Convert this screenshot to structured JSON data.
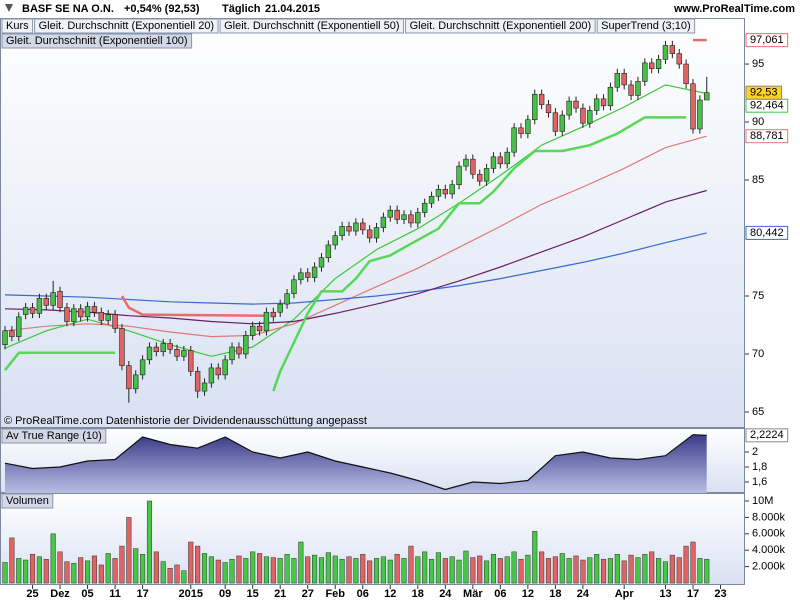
{
  "header": {
    "symbol": "BASF SE NA O.N.",
    "change": "+0,54% (92,53)",
    "period": "Täglich",
    "date": "21.04.2015",
    "source": "www.ProRealTime.com"
  },
  "chart_data": [
    {
      "type": "candlestick",
      "note": "© ProRealTime.com  Datenhistorie der Dividendenausschüttung angepasst",
      "xlim": [
        -0.727,
        107.56
      ],
      "ylim": [
        63.62,
        98.97
      ],
      "yticks": [
        65,
        70,
        75,
        85,
        90,
        95
      ],
      "candles": {
        "name": "Kurs",
        "up_color": "#46c046",
        "down_color": "#e06464",
        "label_color": "#ffd21f",
        "close_label": "92,53",
        "open": [
          70.8,
          72.0,
          71.5,
          73.4,
          74.0,
          73.5,
          74.8,
          74.2,
          75.4,
          74.0,
          72.8,
          73.9,
          73.2,
          74.1,
          73.6,
          72.9,
          73.4,
          72.2,
          69.0,
          67.0,
          68.2,
          69.5,
          70.6,
          70.2,
          70.9,
          70.4,
          69.8,
          70.3,
          68.5,
          66.8,
          67.5,
          68.8,
          68.2,
          69.5,
          70.6,
          70.0,
          71.6,
          72.4,
          72.0,
          73.6,
          73.6,
          74.3,
          75.2,
          76.4,
          77.0,
          76.6,
          77.5,
          78.3,
          79.4,
          80.2,
          81.0,
          80.6,
          81.3,
          80.7,
          80.0,
          80.9,
          81.8,
          82.4,
          81.6,
          82.0,
          81.3,
          82.2,
          83.0,
          83.6,
          84.2,
          83.8,
          84.6,
          86.2,
          86.8,
          85.5,
          84.9,
          86.0,
          87.0,
          86.4,
          87.4,
          89.5,
          89.0,
          90.2,
          92.4,
          91.5,
          90.8,
          89.2,
          90.6,
          91.8,
          91.2,
          89.9,
          91.0,
          92.0,
          91.4,
          93.0,
          94.2,
          93.2,
          92.3,
          93.5,
          95.1,
          94.6,
          95.4,
          96.6,
          95.9,
          95.0,
          93.3,
          89.4,
          91.9
        ],
        "high": [
          72.4,
          72.4,
          73.6,
          74.4,
          74.4,
          75.2,
          75.2,
          76.3,
          75.8,
          74.4,
          74.3,
          74.3,
          74.5,
          74.5,
          74.0,
          73.8,
          73.8,
          72.6,
          69.4,
          68.6,
          69.9,
          71.0,
          71.0,
          71.3,
          71.3,
          70.8,
          70.7,
          70.7,
          68.9,
          67.9,
          69.2,
          69.2,
          69.9,
          71.0,
          71.0,
          72.0,
          72.8,
          72.8,
          74.0,
          74.0,
          74.7,
          75.6,
          76.8,
          77.4,
          77.4,
          77.9,
          78.7,
          79.8,
          80.6,
          81.4,
          81.4,
          81.7,
          81.7,
          81.1,
          81.3,
          82.2,
          82.8,
          82.8,
          82.4,
          82.4,
          82.6,
          83.4,
          84.0,
          84.6,
          84.6,
          85.0,
          86.6,
          87.2,
          87.2,
          85.9,
          86.4,
          87.4,
          87.4,
          87.8,
          89.9,
          89.9,
          90.6,
          92.8,
          92.8,
          91.9,
          91.2,
          91.0,
          92.2,
          92.2,
          91.6,
          91.4,
          92.4,
          92.4,
          93.4,
          94.6,
          94.6,
          93.6,
          93.9,
          95.5,
          95.5,
          95.8,
          97.0,
          97.0,
          96.3,
          95.4,
          93.7,
          92.3,
          93.9
        ],
        "low": [
          70.4,
          71.1,
          71.1,
          73.0,
          73.1,
          73.1,
          73.8,
          73.8,
          73.6,
          72.4,
          72.4,
          72.8,
          72.8,
          73.2,
          72.5,
          72.5,
          71.8,
          68.6,
          65.8,
          66.6,
          67.8,
          69.1,
          69.8,
          69.8,
          70.0,
          69.4,
          69.4,
          68.1,
          66.2,
          66.4,
          67.1,
          67.8,
          67.8,
          69.1,
          69.6,
          69.6,
          71.2,
          71.6,
          71.6,
          72.8,
          73.2,
          73.9,
          74.8,
          76.0,
          76.2,
          76.2,
          77.1,
          77.9,
          79.0,
          79.8,
          80.2,
          80.2,
          80.3,
          79.6,
          79.6,
          80.5,
          81.4,
          81.2,
          81.2,
          80.9,
          80.9,
          81.8,
          82.6,
          83.2,
          83.4,
          83.4,
          84.2,
          85.8,
          85.1,
          84.5,
          84.5,
          85.6,
          86.0,
          86.0,
          87.0,
          88.6,
          88.6,
          89.8,
          91.1,
          90.4,
          88.8,
          88.8,
          90.2,
          90.8,
          89.5,
          89.5,
          90.6,
          91.0,
          91.0,
          92.6,
          92.8,
          91.9,
          91.9,
          93.1,
          94.2,
          94.2,
          95.0,
          95.5,
          94.6,
          92.9,
          89.0,
          89.0,
          92.0
        ],
        "close": [
          72.0,
          71.5,
          73.2,
          74.0,
          73.5,
          74.8,
          74.2,
          75.3,
          74.0,
          72.8,
          73.9,
          73.2,
          74.1,
          73.6,
          72.9,
          73.4,
          72.2,
          69.0,
          67.0,
          68.2,
          69.5,
          70.6,
          70.2,
          70.9,
          70.4,
          69.8,
          70.3,
          68.5,
          66.8,
          67.5,
          68.8,
          68.2,
          69.5,
          70.6,
          70.0,
          71.6,
          72.4,
          72.0,
          73.6,
          73.2,
          74.3,
          75.2,
          76.4,
          77.0,
          76.6,
          77.5,
          78.3,
          79.4,
          80.2,
          81.0,
          80.6,
          81.3,
          80.7,
          80.0,
          80.9,
          81.8,
          82.4,
          81.6,
          82.0,
          81.3,
          82.2,
          83.0,
          83.6,
          84.2,
          83.8,
          84.6,
          86.2,
          86.8,
          85.5,
          84.9,
          86.0,
          87.0,
          86.4,
          87.4,
          89.5,
          89.0,
          90.2,
          92.4,
          91.5,
          90.8,
          89.2,
          90.6,
          91.8,
          91.2,
          89.9,
          91.0,
          92.0,
          91.4,
          93.0,
          94.2,
          93.2,
          92.3,
          93.5,
          95.1,
          94.6,
          95.4,
          96.6,
          95.9,
          95.0,
          93.3,
          89.4,
          91.9,
          92.53
        ]
      },
      "series": [
        {
          "name": "Gleit. Durchschnitt (Exponentiell 20)",
          "color": "#3cc83c",
          "last_label": "92,464",
          "x": [
            0,
            6,
            12,
            18,
            24,
            30,
            36,
            42,
            48,
            54,
            60,
            66,
            72,
            78,
            84,
            90,
            96,
            102
          ],
          "values": [
            70.5,
            72.0,
            73.0,
            72.0,
            70.8,
            69.8,
            70.6,
            73.0,
            76.5,
            79.0,
            80.8,
            83.0,
            85.4,
            88.0,
            89.6,
            91.3,
            93.2,
            92.464
          ]
        },
        {
          "name": "Gleit. Durchschnitt (Exponentiell 50)",
          "color": "#e07878",
          "last_label": "88,781",
          "x": [
            0,
            6,
            12,
            18,
            24,
            30,
            36,
            42,
            48,
            54,
            60,
            66,
            72,
            78,
            84,
            90,
            96,
            102
          ],
          "values": [
            72.0,
            72.4,
            72.6,
            72.4,
            71.9,
            71.5,
            71.6,
            72.6,
            74.2,
            75.8,
            77.4,
            79.2,
            81.0,
            82.9,
            84.4,
            86.0,
            87.8,
            88.781
          ]
        },
        {
          "name": "Gleit. Durchschnitt (Exponentiell 200)",
          "color": "#3a68d8",
          "last_label": "80,442",
          "x": [
            0,
            6,
            12,
            18,
            24,
            30,
            36,
            42,
            48,
            54,
            60,
            66,
            72,
            78,
            84,
            90,
            96,
            102
          ],
          "values": [
            75.1,
            75.0,
            74.9,
            74.7,
            74.5,
            74.4,
            74.3,
            74.4,
            74.7,
            75.0,
            75.4,
            75.9,
            76.5,
            77.2,
            77.9,
            78.7,
            79.6,
            80.442
          ]
        },
        {
          "name": "Gleit. Durchschnitt (Exponentiell 100)",
          "color": "#6a1e6a",
          "x": [
            0,
            6,
            12,
            18,
            24,
            30,
            36,
            42,
            48,
            54,
            60,
            66,
            72,
            78,
            84,
            90,
            96,
            102
          ],
          "values": [
            73.9,
            73.8,
            73.6,
            73.3,
            73.1,
            72.8,
            72.6,
            72.8,
            73.5,
            74.3,
            75.2,
            76.3,
            77.5,
            78.8,
            80.1,
            81.6,
            83.1,
            84.1
          ]
        }
      ],
      "supertrend": {
        "name": "SuperTrend (3;10)",
        "color_up": "#55d855",
        "color_down": "#ec6a6a",
        "last_label": "97,061",
        "x": [
          0,
          2,
          16,
          17,
          18,
          20,
          38,
          39,
          40,
          42,
          44,
          46,
          49,
          51,
          53,
          56,
          59,
          63,
          66,
          69,
          71,
          74,
          77,
          81,
          85,
          89,
          93,
          99,
          100,
          102
        ],
        "up": [
          68.6,
          70.1,
          70.1,
          null,
          null,
          null,
          null,
          66.8,
          68.5,
          71.0,
          73.5,
          75.4,
          75.4,
          76.5,
          78.0,
          78.5,
          79.5,
          80.8,
          83.0,
          83.0,
          84.0,
          86.0,
          87.5,
          87.5,
          88.0,
          89.0,
          90.4,
          90.4,
          null,
          null
        ],
        "down": [
          null,
          null,
          null,
          75.0,
          74.0,
          73.4,
          73.3,
          null,
          null,
          null,
          null,
          null,
          null,
          null,
          null,
          null,
          null,
          null,
          null,
          null,
          null,
          null,
          null,
          null,
          null,
          null,
          null,
          null,
          97.061,
          97.061
        ]
      }
    },
    {
      "type": "area",
      "title": "Av True Range (10)",
      "color": "#3c3c8c",
      "last_label": "2,2224",
      "xlim": [
        -0.727,
        107.56
      ],
      "ylim": [
        1.453,
        2.32
      ],
      "yticks": [
        {
          "value": 1.6,
          "label": "1,6"
        },
        {
          "value": 1.8,
          "label": "1,8"
        },
        2
      ],
      "x": [
        0,
        4,
        8,
        12,
        16,
        20,
        24,
        28,
        32,
        36,
        40,
        44,
        48,
        52,
        56,
        60,
        64,
        68,
        72,
        76,
        80,
        84,
        88,
        92,
        96,
        100,
        102
      ],
      "values": [
        1.85,
        1.78,
        1.8,
        1.88,
        1.9,
        2.2,
        2.1,
        2.05,
        2.2,
        2.0,
        1.92,
        2.0,
        1.88,
        1.8,
        1.72,
        1.62,
        1.5,
        1.6,
        1.58,
        1.62,
        1.95,
        2.0,
        1.92,
        1.9,
        1.95,
        2.23,
        2.2224
      ]
    },
    {
      "type": "bar",
      "title": "Volumen",
      "up_color": "#46c846",
      "down_color": "#e06464",
      "xlim": [
        -0.727,
        107.56
      ],
      "ylim": [
        -244,
        10976
      ],
      "yticks": [
        {
          "value": 2000,
          "label": "2.000k"
        },
        {
          "value": 4000,
          "label": "4.000k"
        },
        {
          "value": 6000,
          "label": "6.000k"
        },
        {
          "value": 8000,
          "label": "8.000k"
        },
        {
          "value": 10000,
          "label": "10M"
        }
      ],
      "xticks": [
        {
          "value": 4,
          "label": "25"
        },
        {
          "value": 8,
          "label": "Dez"
        },
        {
          "value": 12,
          "label": "05"
        },
        {
          "value": 16,
          "label": "11"
        },
        {
          "value": 20,
          "label": "17"
        },
        {
          "value": 27,
          "label": "2015"
        },
        {
          "value": 32,
          "label": "09"
        },
        {
          "value": 36,
          "label": "15"
        },
        {
          "value": 40,
          "label": "21"
        },
        {
          "value": 44,
          "label": "27"
        },
        {
          "value": 48,
          "label": "Feb"
        },
        {
          "value": 52,
          "label": "06"
        },
        {
          "value": 56,
          "label": "12"
        },
        {
          "value": 60,
          "label": "18"
        },
        {
          "value": 64,
          "label": "24"
        },
        {
          "value": 68,
          "label": "Mär"
        },
        {
          "value": 72,
          "label": "06"
        },
        {
          "value": 76,
          "label": "12"
        },
        {
          "value": 80,
          "label": "18"
        },
        {
          "value": 84,
          "label": "24"
        },
        {
          "value": 90,
          "label": "Apr"
        },
        {
          "value": 96,
          "label": "13"
        },
        {
          "value": 100,
          "label": "17"
        },
        {
          "value": 104,
          "label": "23"
        }
      ],
      "values": [
        2500,
        5500,
        3000,
        2800,
        3500,
        3200,
        2900,
        6000,
        3800,
        2600,
        2400,
        3100,
        2700,
        3300,
        2200,
        3600,
        3000,
        4500,
        8000,
        4200,
        3500,
        10000,
        3800,
        2600,
        1800,
        2200,
        1500,
        5000,
        4500,
        3600,
        3200,
        2800,
        2500,
        2900,
        3300,
        3000,
        3800,
        3600,
        3200,
        3100,
        3000,
        3500,
        3000,
        5000,
        3200,
        3400,
        3100,
        3700,
        3300,
        2900,
        3200,
        3000,
        3500,
        2700,
        3000,
        3200,
        2800,
        3500,
        3000,
        4500,
        3200,
        3800,
        2900,
        3700,
        3000,
        3200,
        2800,
        3900,
        3100,
        3300,
        2700,
        3500,
        3000,
        3200,
        3800,
        2900,
        3400,
        6300,
        3800,
        3000,
        3200,
        3600,
        3000,
        3300,
        2800,
        3100,
        3500,
        2900,
        3000,
        3500,
        2700,
        3400,
        3100,
        3500,
        3800,
        3000,
        2600,
        3400,
        3100,
        4500,
        5000,
        3000,
        2900
      ]
    }
  ]
}
